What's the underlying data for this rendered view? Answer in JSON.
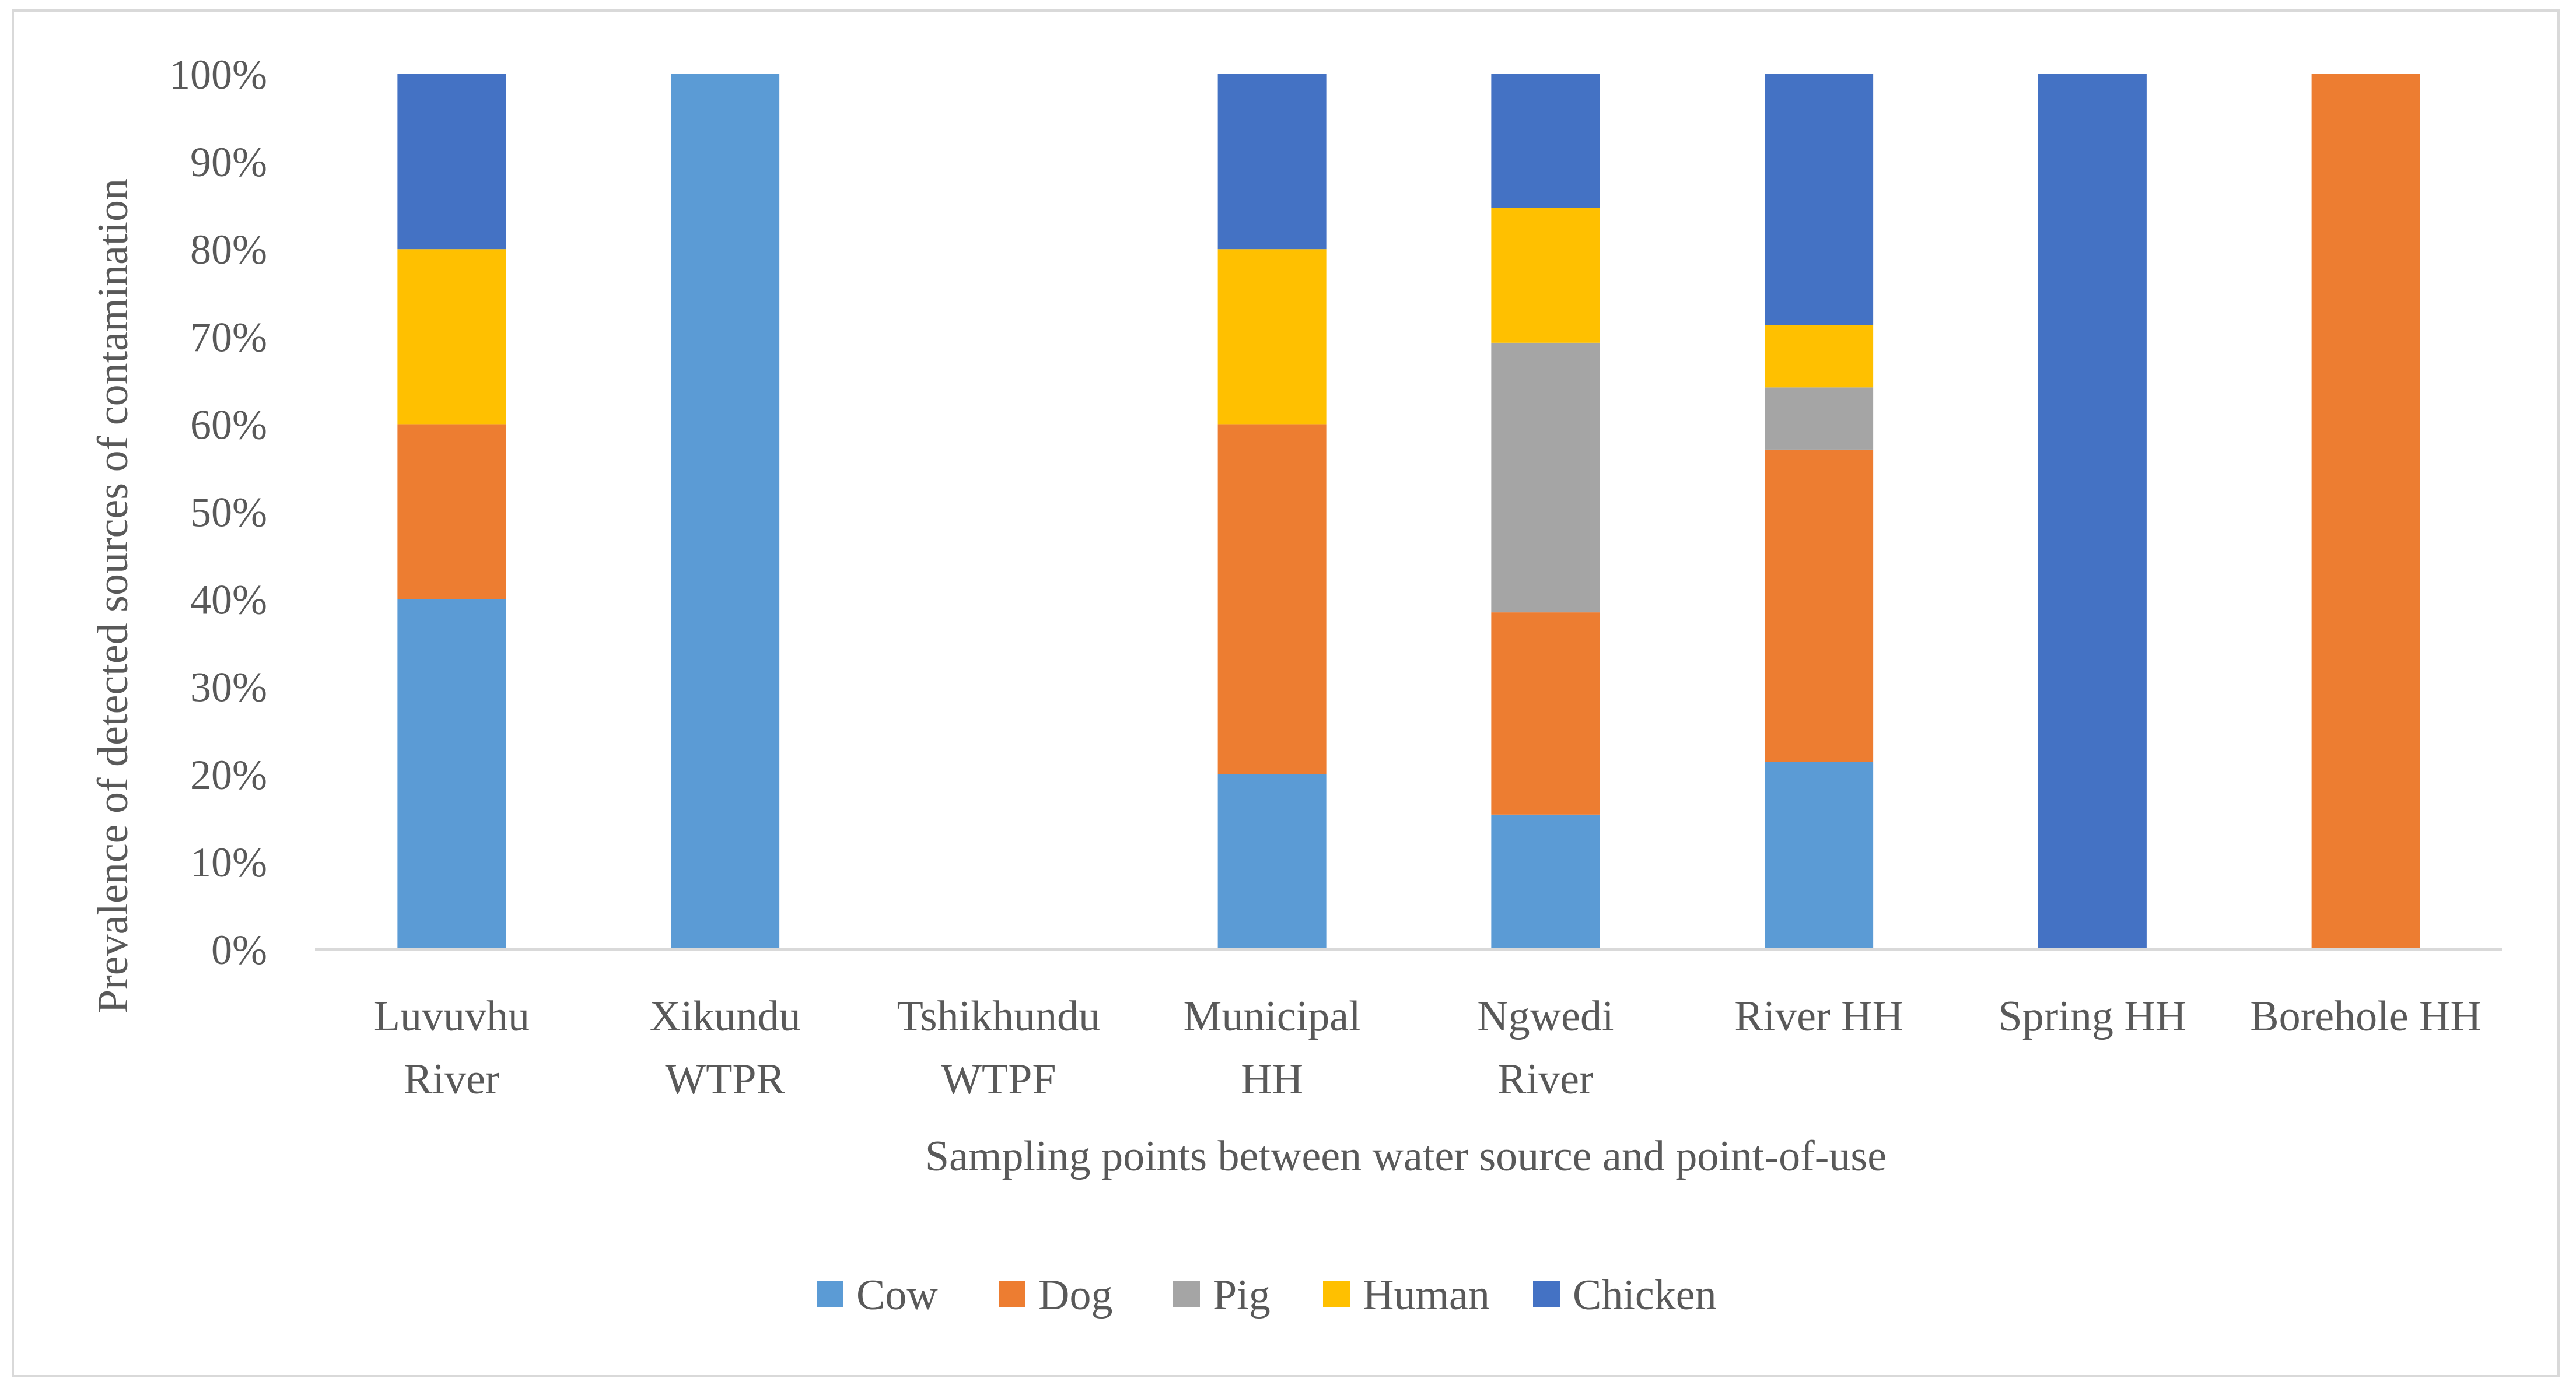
{
  "chart_data": {
    "type": "bar",
    "stacked": true,
    "percent": true,
    "title": "",
    "xlabel": "Sampling points between water source and point-of-use",
    "ylabel": "Prevalence of detected sources of contamination",
    "ylim": [
      0,
      100
    ],
    "yticks": [
      "0%",
      "10%",
      "20%",
      "30%",
      "40%",
      "50%",
      "60%",
      "70%",
      "80%",
      "90%",
      "100%"
    ],
    "grid": false,
    "legend_position": "bottom",
    "categories": [
      [
        "Luvuvhu",
        "River"
      ],
      [
        "Xikundu",
        "WTPR"
      ],
      [
        "Tshikhundu",
        "WTPF"
      ],
      [
        "Municipal",
        "HH"
      ],
      [
        "Ngwedi",
        "River"
      ],
      [
        "River HH"
      ],
      [
        "Spring HH"
      ],
      [
        "Borehole HH"
      ]
    ],
    "series": [
      {
        "name": "Cow",
        "color": "#5b9bd5",
        "values": [
          40,
          100,
          0,
          20,
          15.4,
          21.4,
          0,
          0
        ]
      },
      {
        "name": "Dog",
        "color": "#ed7d31",
        "values": [
          20,
          0,
          0,
          40,
          23.1,
          35.7,
          0,
          100
        ]
      },
      {
        "name": "Pig",
        "color": "#a5a5a5",
        "values": [
          0,
          0,
          0,
          0,
          30.8,
          7.1,
          0,
          0
        ]
      },
      {
        "name": "Human",
        "color": "#ffc000",
        "values": [
          20,
          0,
          0,
          20,
          15.4,
          7.1,
          0,
          0
        ]
      },
      {
        "name": "Chicken",
        "color": "#4472c4",
        "values": [
          20,
          0,
          0,
          20,
          15.3,
          28.7,
          100,
          0
        ]
      }
    ]
  }
}
